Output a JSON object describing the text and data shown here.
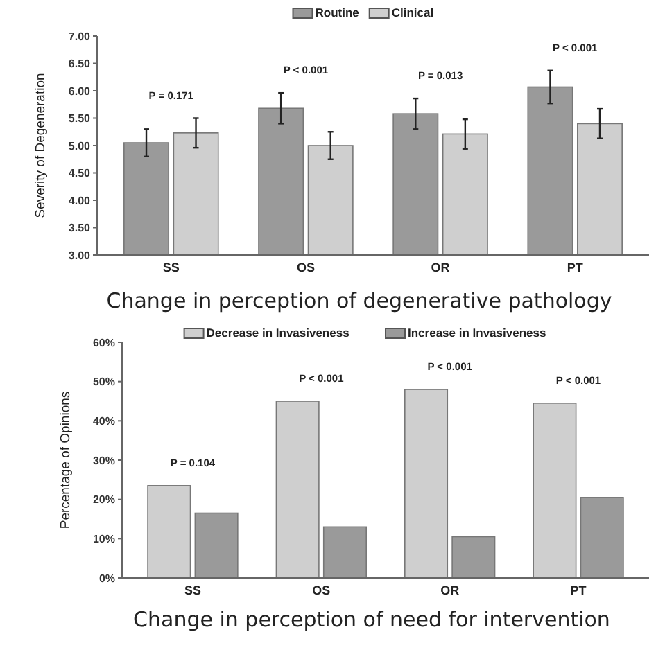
{
  "chart_data": [
    {
      "type": "bar",
      "title": "Change in perception of degenerative pathology",
      "ylabel": "Severity of Degeneration",
      "categories": [
        "SS",
        "OS",
        "OR",
        "PT"
      ],
      "series": [
        {
          "name": "Routine",
          "color": "#9a9a9a",
          "values": [
            5.05,
            5.68,
            5.58,
            6.07
          ],
          "errors": [
            0.25,
            0.28,
            0.28,
            0.3
          ]
        },
        {
          "name": "Clinical",
          "color": "#cfcfcf",
          "values": [
            5.23,
            5.0,
            5.21,
            5.4
          ],
          "errors": [
            0.27,
            0.25,
            0.27,
            0.27
          ]
        }
      ],
      "ylim": [
        3,
        7
      ],
      "yticks": [
        {
          "value": 3,
          "label": "3.00"
        },
        {
          "value": 3.5,
          "label": "3.50"
        },
        {
          "value": 4,
          "label": "4.00"
        },
        {
          "value": 4.5,
          "label": "4.50"
        },
        {
          "value": 5,
          "label": "5.00"
        },
        {
          "value": 5.5,
          "label": "5.50"
        },
        {
          "value": 6,
          "label": "6.00"
        },
        {
          "value": 6.5,
          "label": "6.50"
        },
        {
          "value": 7,
          "label": "7.00"
        }
      ],
      "annotations": [
        "P = 0.171",
        "P < 0.001",
        "P = 0.013",
        "P < 0.001"
      ],
      "legend": "top",
      "grid": false
    },
    {
      "type": "bar",
      "title": "Change in perception of need for intervention",
      "ylabel": "Percentage of Opinions",
      "categories": [
        "SS",
        "OS",
        "OR",
        "PT"
      ],
      "series": [
        {
          "name": "Decrease in Invasiveness",
          "color": "#cfcfcf",
          "values": [
            23.5,
            45,
            48,
            44.5
          ]
        },
        {
          "name": "Increase in Invasiveness",
          "color": "#9a9a9a",
          "values": [
            16.5,
            13,
            10.5,
            20.5
          ]
        }
      ],
      "ylim": [
        0,
        60
      ],
      "yticks": [
        {
          "value": 0,
          "label": "0%"
        },
        {
          "value": 10,
          "label": "10%"
        },
        {
          "value": 20,
          "label": "20%"
        },
        {
          "value": 30,
          "label": "30%"
        },
        {
          "value": 40,
          "label": "40%"
        },
        {
          "value": 50,
          "label": "50%"
        },
        {
          "value": 60,
          "label": "60%"
        }
      ],
      "annotations": [
        "P = 0.104",
        "P < 0.001",
        "P < 0.001",
        "P < 0.001"
      ],
      "legend": "top",
      "grid": false
    }
  ]
}
